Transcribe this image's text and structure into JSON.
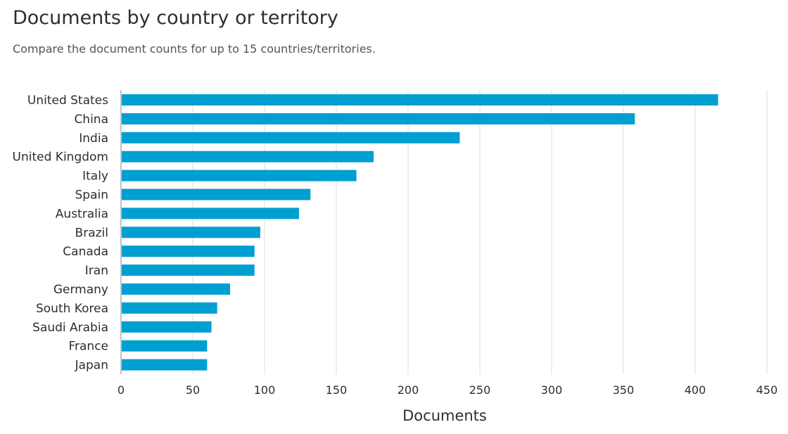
{
  "header": {
    "title": "Documents by country or territory",
    "subtitle": "Compare the document counts for up to 15 countries/territories."
  },
  "colors": {
    "bar": "#009fd1",
    "grid": "#dedede",
    "axis": "#9a9a9a"
  },
  "chart_data": {
    "type": "bar",
    "orientation": "horizontal",
    "title": "Documents by country or territory",
    "subtitle": "Compare the document counts for up to 15 countries/territories.",
    "xlabel": "Documents",
    "ylabel": "",
    "categories": [
      "United States",
      "China",
      "India",
      "United Kingdom",
      "Italy",
      "Spain",
      "Australia",
      "Brazil",
      "Canada",
      "Iran",
      "Germany",
      "South Korea",
      "Saudi Arabia",
      "France",
      "Japan"
    ],
    "values": [
      416,
      358,
      236,
      176,
      164,
      132,
      124,
      97,
      93,
      93,
      76,
      67,
      63,
      60,
      60
    ],
    "xlim": [
      0,
      450
    ],
    "xticks": [
      0,
      50,
      100,
      150,
      200,
      250,
      300,
      350,
      400,
      450
    ],
    "grid": true,
    "legend": "none"
  }
}
